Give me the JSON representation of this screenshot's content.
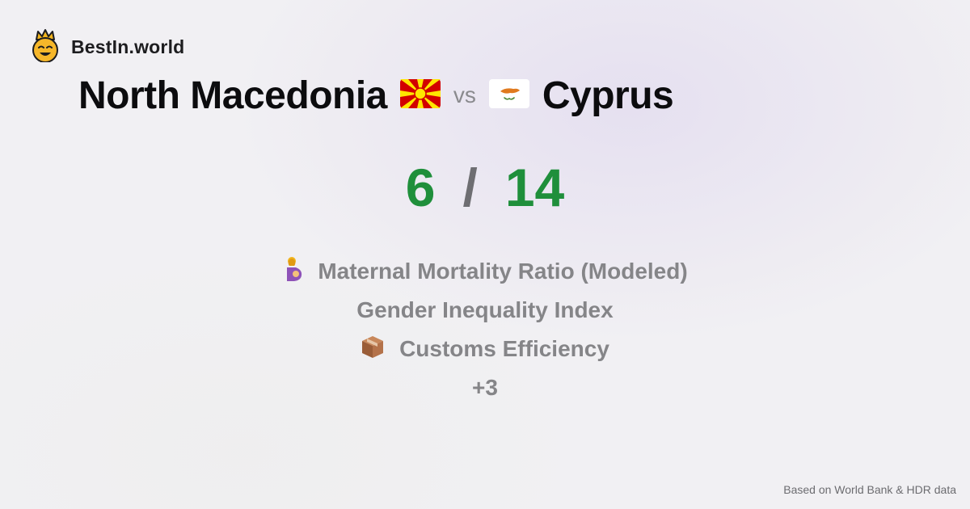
{
  "brand": {
    "name": "BestIn.world",
    "logo_icon": "crowned-smiley-icon"
  },
  "comparison": {
    "country_a": "North Macedonia",
    "flag_a": "north-macedonia-flag-icon",
    "vs_label": "vs",
    "country_b": "Cyprus",
    "flag_b": "cyprus-flag-icon"
  },
  "score": {
    "a": "6",
    "separator": "/",
    "b": "14",
    "color": "#1f8f3b"
  },
  "metrics": [
    {
      "icon": "pregnant-woman-icon",
      "label": "Maternal Mortality Ratio (Modeled)"
    },
    {
      "icon": "",
      "label": "Gender Inequality Index"
    },
    {
      "icon": "package-icon",
      "label": "Customs Efficiency"
    },
    {
      "icon": "",
      "label": "+3"
    }
  ],
  "footer": {
    "source": "Based on World Bank & HDR data"
  }
}
